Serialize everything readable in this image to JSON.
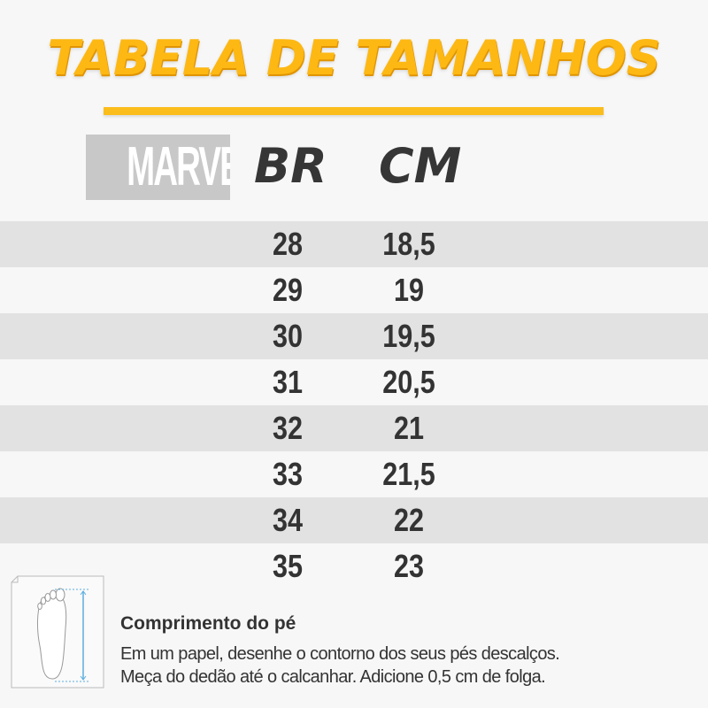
{
  "title": "TABELA DE TAMANHOS",
  "logo": "MARVEL",
  "headers": {
    "br": "BR",
    "cm": "CM"
  },
  "rows": [
    {
      "br": "28",
      "cm": "18,5"
    },
    {
      "br": "29",
      "cm": "19"
    },
    {
      "br": "30",
      "cm": "19,5"
    },
    {
      "br": "31",
      "cm": "20,5"
    },
    {
      "br": "32",
      "cm": "21"
    },
    {
      "br": "33",
      "cm": "21,5"
    },
    {
      "br": "34",
      "cm": "22"
    },
    {
      "br": "35",
      "cm": "23"
    }
  ],
  "colors": {
    "accent": "#fdb813",
    "stripe": "#e2e2e2",
    "text": "#333333",
    "arrow": "#5aaee0"
  },
  "footer": {
    "heading": "Comprimento do pé",
    "line1": "Em um papel, desenhe o contorno dos seus pés descalços.",
    "line2": "Meça do dedão até o calcanhar. Adicione 0,5 cm de folga."
  }
}
